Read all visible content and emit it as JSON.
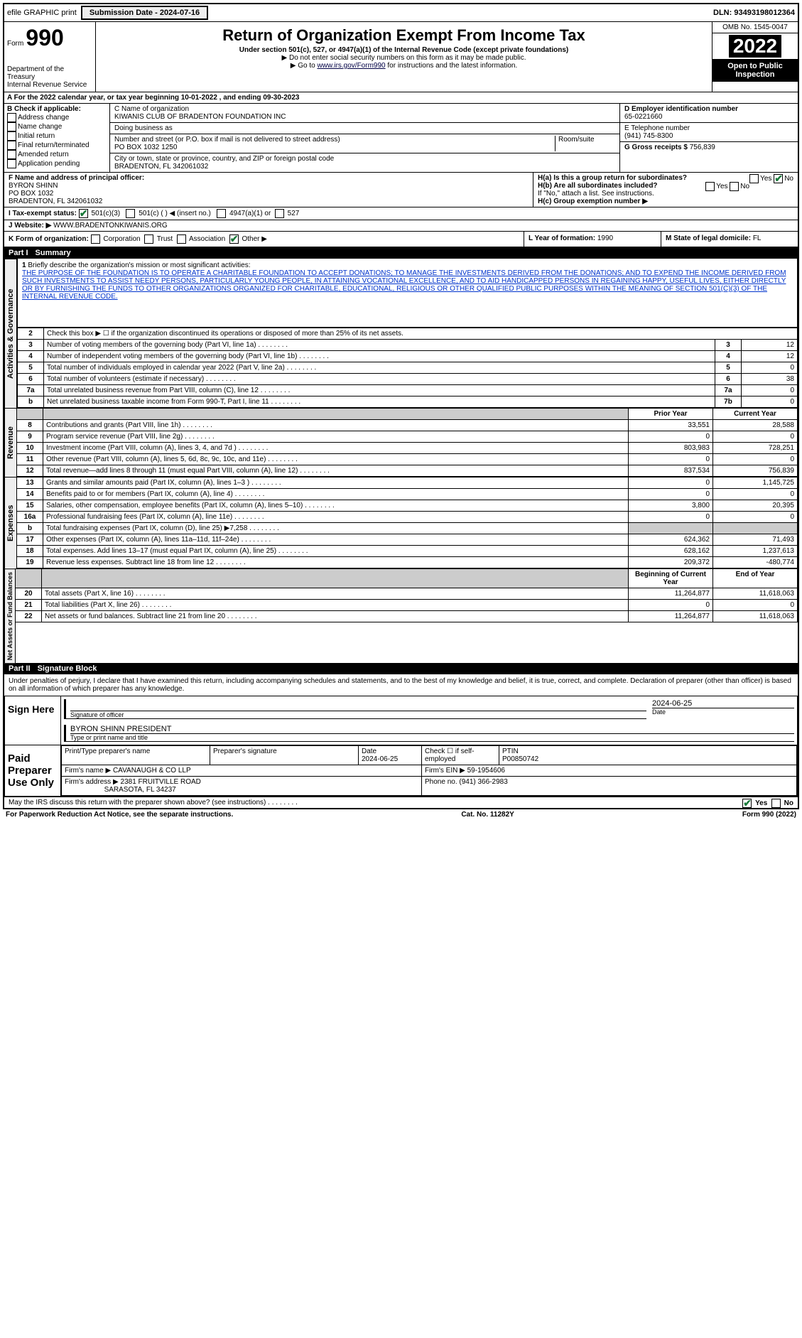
{
  "topbar": {
    "efile": "efile GRAPHIC print",
    "submission": "Submission Date - 2024-07-16",
    "dln": "DLN: 93493198012364"
  },
  "header": {
    "form_prefix": "Form",
    "form_number": "990",
    "dept1": "Department of the Treasury",
    "dept2": "Internal Revenue Service",
    "title": "Return of Organization Exempt From Income Tax",
    "subtitle": "Under section 501(c), 527, or 4947(a)(1) of the Internal Revenue Code (except private foundations)",
    "note1": "▶ Do not enter social security numbers on this form as it may be made public.",
    "note2_pre": "▶ Go to ",
    "note2_link": "www.irs.gov/Form990",
    "note2_post": " for instructions and the latest information.",
    "omb": "OMB No. 1545-0047",
    "year": "2022",
    "open": "Open to Public Inspection"
  },
  "period": {
    "line": "A For the 2022 calendar year, or tax year beginning 10-01-2022  , and ending 09-30-2023"
  },
  "sectionB": {
    "title": "B Check if applicable:",
    "items": [
      "Address change",
      "Name change",
      "Initial return",
      "Final return/terminated",
      "Amended return",
      "Application pending"
    ]
  },
  "sectionC": {
    "label_c": "C Name of organization",
    "org_name": "KIWANIS CLUB OF BRADENTON FOUNDATION INC",
    "dba_label": "Doing business as",
    "addr_label": "Number and street (or P.O. box if mail is not delivered to street address)",
    "room_label": "Room/suite",
    "addr": "PO BOX 1032 1250",
    "city_label": "City or town, state or province, country, and ZIP or foreign postal code",
    "city": "BRADENTON, FL  342061032"
  },
  "sectionD": {
    "label": "D Employer identification number",
    "ein": "65-0221660",
    "e_label": "E Telephone number",
    "phone": "(941) 745-8300",
    "g_label": "G Gross receipts $ ",
    "g_val": "756,839"
  },
  "sectionF": {
    "label": "F  Name and address of principal officer:",
    "name": "BYRON SHINN",
    "line2": "PO BOX 1032",
    "line3": "BRADENTON, FL  342061032"
  },
  "sectionH": {
    "ha": "H(a)  Is this a group return for subordinates?",
    "hb": "H(b)  Are all subordinates included?",
    "hb_note": "If \"No,\" attach a list. See instructions.",
    "hc": "H(c)  Group exemption number ▶",
    "yes": "Yes",
    "no": "No"
  },
  "rowI": {
    "label": "I  Tax-exempt status:",
    "o1": "501(c)(3)",
    "o2": "501(c) (  ) ◀ (insert no.)",
    "o3": "4947(a)(1) or",
    "o4": "527"
  },
  "rowJ": {
    "label": "J  Website: ▶",
    "val": "WWW.BRADENTONKIWANIS.ORG"
  },
  "rowK": {
    "label": "K Form of organization:",
    "corp": "Corporation",
    "trust": "Trust",
    "assoc": "Association",
    "other": "Other ▶"
  },
  "rowL": {
    "l_label": "L Year of formation: ",
    "l_val": "1990",
    "m_label": "M State of legal domicile: ",
    "m_val": "FL"
  },
  "part1": {
    "label": "Part I",
    "title": "Summary"
  },
  "mission": {
    "num": "1",
    "intro": "Briefly describe the organization's mission or most significant activities:",
    "text": "THE PURPOSE OF THE FOUNDATION IS TO OPERATE A CHARITABLE FOUNDATION TO ACCEPT DONATIONS; TO MANAGE THE INVESTMENTS DERIVED FROM THE DONATIONS; AND TO EXPEND THE INCOME DERIVED FROM SUCH INVESTMENTS TO ASSIST NEEDY PERSONS, PARTICULARLY YOUNG PEOPLE, IN ATTAINING VOCATIONAL EXCELLENCE, AND TO AID HANDICAPPED PERSONS IN REGAINING HAPPY, USEFUL LIVES, EITHER DIRECTLY OR BY FURNISHING THE FUNDS TO OTHER ORGANIZATIONS ORGANIZED FOR CHARITABLE, EDUCATIONAL, RELIGIOUS OR OTHER QUALIFIED PUBLIC PURPOSES WITHIN THE MEANING OF SECTION 501(C)(3) OF THE INTERNAL REVENUE CODE."
  },
  "gov_side": "Activities & Governance",
  "rev_side": "Revenue",
  "exp_side": "Expenses",
  "net_side": "Net Assets or Fund Balances",
  "govlines": {
    "l2": "Check this box ▶ ☐ if the organization discontinued its operations or disposed of more than 25% of its net assets.",
    "l3": "Number of voting members of the governing body (Part VI, line 1a)",
    "l4": "Number of independent voting members of the governing body (Part VI, line 1b)",
    "l5": "Total number of individuals employed in calendar year 2022 (Part V, line 2a)",
    "l6": "Total number of volunteers (estimate if necessary)",
    "l7a": "Total unrelated business revenue from Part VIII, column (C), line 12",
    "l7b": "Net unrelated business taxable income from Form 990-T, Part I, line 11",
    "v3": "12",
    "v4": "12",
    "v5": "0",
    "v6": "38",
    "v7a": "0",
    "v7b": "0"
  },
  "yearcol": {
    "prior": "Prior Year",
    "current": "Current Year",
    "begin": "Beginning of Current Year",
    "end": "End of Year"
  },
  "revlines": [
    {
      "n": "8",
      "d": "Contributions and grants (Part VIII, line 1h)",
      "p": "33,551",
      "c": "28,588"
    },
    {
      "n": "9",
      "d": "Program service revenue (Part VIII, line 2g)",
      "p": "0",
      "c": "0"
    },
    {
      "n": "10",
      "d": "Investment income (Part VIII, column (A), lines 3, 4, and 7d )",
      "p": "803,983",
      "c": "728,251"
    },
    {
      "n": "11",
      "d": "Other revenue (Part VIII, column (A), lines 5, 6d, 8c, 9c, 10c, and 11e)",
      "p": "0",
      "c": "0"
    },
    {
      "n": "12",
      "d": "Total revenue—add lines 8 through 11 (must equal Part VIII, column (A), line 12)",
      "p": "837,534",
      "c": "756,839"
    }
  ],
  "explines": [
    {
      "n": "13",
      "d": "Grants and similar amounts paid (Part IX, column (A), lines 1–3 )",
      "p": "0",
      "c": "1,145,725"
    },
    {
      "n": "14",
      "d": "Benefits paid to or for members (Part IX, column (A), line 4)",
      "p": "0",
      "c": "0"
    },
    {
      "n": "15",
      "d": "Salaries, other compensation, employee benefits (Part IX, column (A), lines 5–10)",
      "p": "3,800",
      "c": "20,395"
    },
    {
      "n": "16a",
      "d": "Professional fundraising fees (Part IX, column (A), line 11e)",
      "p": "0",
      "c": "0"
    },
    {
      "n": "b",
      "d": "Total fundraising expenses (Part IX, column (D), line 25) ▶7,258",
      "p": "shaded",
      "c": "shaded"
    },
    {
      "n": "17",
      "d": "Other expenses (Part IX, column (A), lines 11a–11d, 11f–24e)",
      "p": "624,362",
      "c": "71,493"
    },
    {
      "n": "18",
      "d": "Total expenses. Add lines 13–17 (must equal Part IX, column (A), line 25)",
      "p": "628,162",
      "c": "1,237,613"
    },
    {
      "n": "19",
      "d": "Revenue less expenses. Subtract line 18 from line 12",
      "p": "209,372",
      "c": "-480,774"
    }
  ],
  "netlines": [
    {
      "n": "20",
      "d": "Total assets (Part X, line 16)",
      "p": "11,264,877",
      "c": "11,618,063"
    },
    {
      "n": "21",
      "d": "Total liabilities (Part X, line 26)",
      "p": "0",
      "c": "0"
    },
    {
      "n": "22",
      "d": "Net assets or fund balances. Subtract line 21 from line 20",
      "p": "11,264,877",
      "c": "11,618,063"
    }
  ],
  "part2": {
    "label": "Part II",
    "title": "Signature Block"
  },
  "declaration": "Under penalties of perjury, I declare that I have examined this return, including accompanying schedules and statements, and to the best of my knowledge and belief, it is true, correct, and complete. Declaration of preparer (other than officer) is based on all information of which preparer has any knowledge.",
  "sign": {
    "here": "Sign Here",
    "sig_officer": "Signature of officer",
    "date_label": "Date",
    "date": "2024-06-25",
    "name": "BYRON SHINN PRESIDENT",
    "name_label": "Type or print name and title"
  },
  "paid": {
    "title": "Paid Preparer Use Only",
    "h1": "Print/Type preparer's name",
    "h2": "Preparer's signature",
    "h3": "Date",
    "h3v": "2024-06-25",
    "h4": "Check ☐ if self-employed",
    "h5": "PTIN",
    "h5v": "P00850742",
    "firm_name_l": "Firm's name    ▶",
    "firm_name": "CAVANAUGH & CO LLP",
    "firm_ein_l": "Firm's EIN ▶",
    "firm_ein": "59-1954606",
    "firm_addr_l": "Firm's address ▶",
    "firm_addr1": "2381 FRUITVILLE ROAD",
    "firm_addr2": "SARASOTA, FL  34237",
    "phone_l": "Phone no. ",
    "phone": "(941) 366-2983"
  },
  "bottom": {
    "discuss": "May the IRS discuss this return with the preparer shown above? (see instructions)",
    "yes": "Yes",
    "no": "No"
  },
  "footer": {
    "left": "For Paperwork Reduction Act Notice, see the separate instructions.",
    "mid": "Cat. No. 11282Y",
    "right": "Form 990 (2022)"
  }
}
